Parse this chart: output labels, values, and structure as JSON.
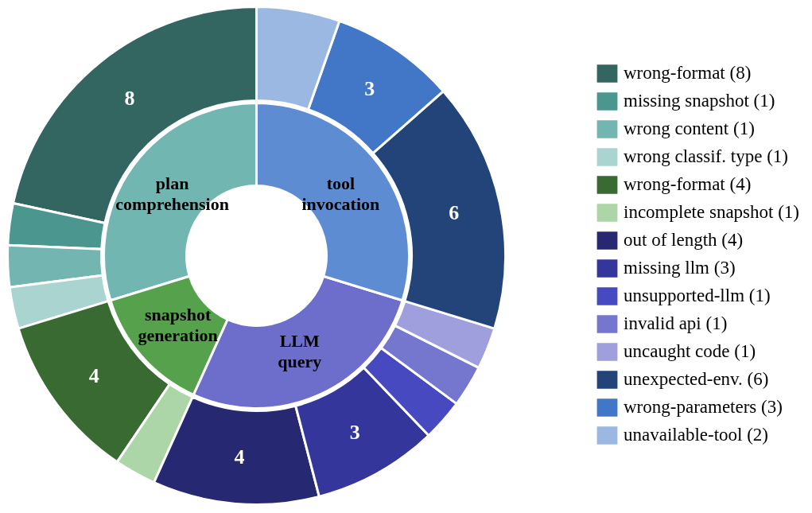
{
  "chart_data": {
    "type": "donut",
    "legend": "right",
    "categories": [
      "plan comprehension",
      "snapshot generation",
      "LLM query",
      "tool invocation",
      "wrong-format (8)",
      "missing snapshot (1)",
      "wrong content (1)",
      "wrong classif. type (1)",
      "wrong-format (4)",
      "incomplete snapshot (1)",
      "out of length (4)",
      "missing llm (3)",
      "unsupported-llm (1)",
      "invalid api (1)",
      "uncaught code (1)",
      "unexpected-env. (6)",
      "wrong-parameters (3)",
      "unavailable-tool (2)"
    ],
    "series": [
      {
        "values": [
          29.73,
          13.51,
          27.03,
          29.73,
          null,
          null,
          null,
          null,
          null,
          null,
          null,
          null,
          null,
          null,
          null,
          null,
          null,
          null
        ],
        "colors": [
          "#72b6b1",
          "#56a24c",
          "#6d6dcc",
          "#5d8cd2",
          null,
          null,
          null,
          null,
          null,
          null,
          null,
          null,
          null,
          null,
          null,
          null,
          null,
          null
        ]
      },
      {
        "values": [
          null,
          null,
          null,
          null,
          8,
          1,
          1,
          1,
          4,
          1,
          4,
          3,
          1,
          1,
          1,
          6,
          3,
          2
        ],
        "colors": [
          null,
          null,
          null,
          null,
          "#336661",
          "#4b968f",
          "#73b6b1",
          "#aad4d0",
          "#386a32",
          "#acd6a8",
          "#262872",
          "#34369c",
          "#4649c0",
          "#7577cf",
          "#a09fde",
          "#234478",
          "#4277c8",
          "#9ab8e2"
        ],
        "value_labels": [
          null,
          null,
          null,
          null,
          "8",
          null,
          null,
          null,
          "4",
          null,
          "4",
          "3",
          null,
          null,
          null,
          "6",
          "3",
          null
        ]
      }
    ]
  }
}
